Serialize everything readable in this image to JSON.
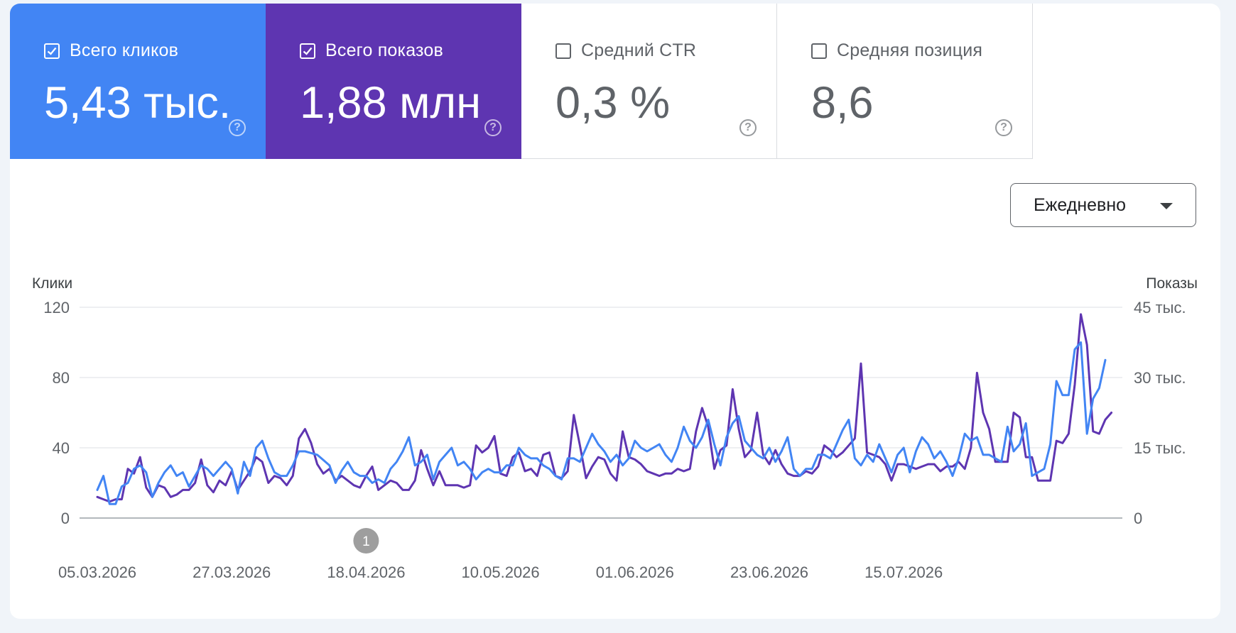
{
  "metrics": [
    {
      "key": "clicks",
      "label": "Всего кликов",
      "value": "5,43 тыс.",
      "checked": true,
      "color": "#4285f4"
    },
    {
      "key": "impressions",
      "label": "Всего показов",
      "value": "1,88 млн",
      "checked": true,
      "color": "#5e35b1"
    },
    {
      "key": "ctr",
      "label": "Средний CTR",
      "value": "0,3 %",
      "checked": false
    },
    {
      "key": "position",
      "label": "Средняя позиция",
      "value": "8,6",
      "checked": false
    }
  ],
  "help_glyph": "?",
  "granularity": {
    "selected": "Ежедневно"
  },
  "chart_data": {
    "type": "line",
    "left_axis": {
      "title": "Клики",
      "ticks": [
        "0",
        "40",
        "80",
        "120"
      ],
      "range": [
        0,
        120
      ]
    },
    "right_axis": {
      "title": "Показы",
      "ticks": [
        "0",
        "15 тыс.",
        "30 тыс.",
        "45 тыс."
      ],
      "range": [
        0,
        45000
      ]
    },
    "x_tick_labels": [
      "05.03.2026",
      "27.03.2026",
      "18.04.2026",
      "10.05.2026",
      "01.06.2026",
      "23.06.2026",
      "15.07.2026"
    ],
    "x_start": "05.03.2026",
    "annotation": {
      "label": "1",
      "date": "18.04.2026"
    },
    "grid": true,
    "series": [
      {
        "name": "Всего кликов",
        "axis": "left",
        "color": "#4285f4",
        "values": [
          16,
          24,
          8,
          8,
          18,
          20,
          28,
          30,
          26,
          12,
          20,
          26,
          30,
          24,
          26,
          18,
          24,
          30,
          28,
          24,
          28,
          32,
          28,
          14,
          32,
          24,
          40,
          44,
          34,
          26,
          24,
          24,
          30,
          38,
          38,
          37,
          36,
          33,
          30,
          20,
          27,
          32,
          26,
          24,
          24,
          20,
          22,
          20,
          28,
          32,
          38,
          46,
          30,
          32,
          36,
          22,
          32,
          36,
          40,
          30,
          32,
          28,
          22,
          26,
          28,
          26,
          26,
          30,
          30,
          40,
          36,
          34,
          34,
          30,
          28,
          24,
          22,
          34,
          34,
          32,
          40,
          48,
          42,
          38,
          32,
          36,
          30,
          34,
          44,
          40,
          38,
          40,
          42,
          36,
          32,
          40,
          52,
          44,
          40,
          46,
          56,
          42,
          30,
          46,
          54,
          58,
          44,
          40,
          36,
          34,
          40,
          32,
          38,
          46,
          28,
          24,
          28,
          28,
          36,
          36,
          34,
          42,
          50,
          56,
          34,
          30,
          36,
          32,
          42,
          34,
          26,
          36,
          40,
          26,
          38,
          46,
          42,
          34,
          38,
          32,
          24,
          34,
          48,
          44,
          46,
          36,
          36,
          34,
          32,
          52,
          38,
          42,
          54,
          24,
          26,
          28,
          42,
          78,
          70,
          70,
          96,
          100,
          48,
          68,
          74,
          90
        ]
      },
      {
        "name": "Всего показов",
        "axis": "right",
        "color": "#5e35b1",
        "values": [
          4500,
          4000,
          3500,
          4000,
          4000,
          10500,
          9500,
          13000,
          6500,
          4500,
          7000,
          6500,
          4500,
          5000,
          6000,
          6000,
          7500,
          12500,
          7000,
          5500,
          8000,
          7000,
          10000,
          6000,
          8000,
          10000,
          13000,
          12000,
          7500,
          9000,
          8500,
          7000,
          9000,
          17000,
          19000,
          16000,
          11500,
          9500,
          10500,
          8000,
          9000,
          8000,
          7000,
          6500,
          9000,
          11000,
          6000,
          7000,
          8000,
          7500,
          6000,
          6000,
          8000,
          14500,
          10500,
          7000,
          10000,
          7000,
          7000,
          7000,
          6500,
          7000,
          15500,
          14000,
          15000,
          17500,
          9500,
          9000,
          13000,
          14000,
          10000,
          10500,
          9000,
          13500,
          14000,
          9000,
          8500,
          10000,
          22000,
          15500,
          8500,
          11000,
          13000,
          12500,
          9500,
          8000,
          18500,
          13000,
          12500,
          11500,
          10000,
          9500,
          9000,
          9500,
          9500,
          10500,
          10000,
          10500,
          18500,
          23500,
          19500,
          10500,
          14500,
          15500,
          27500,
          19000,
          13000,
          14500,
          22500,
          13500,
          11500,
          14500,
          11500,
          9500,
          9000,
          9000,
          10000,
          9500,
          11000,
          15500,
          14500,
          13000,
          14000,
          15500,
          17000,
          33000,
          14000,
          13500,
          13000,
          11500,
          8000,
          11500,
          11500,
          11000,
          10500,
          11000,
          11500,
          11500,
          10000,
          11000,
          11000,
          12000,
          10500,
          15000,
          31000,
          22500,
          19000,
          12000,
          12000,
          12000,
          22500,
          21500,
          13000,
          13000,
          8000,
          8000,
          8000,
          16500,
          16000,
          18000,
          28500,
          43500,
          37000,
          18500,
          18000,
          21000,
          22500
        ]
      }
    ]
  }
}
